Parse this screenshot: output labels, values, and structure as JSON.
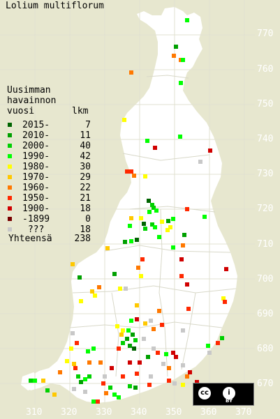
{
  "title": "Lolium multiflorum",
  "legend": {
    "heading": [
      "Uusimman",
      "havainnon",
      "vuosi"
    ],
    "count_heading": "lkm",
    "rows": [
      {
        "label": "2015-",
        "count": "7",
        "color": "#006400"
      },
      {
        "label": "2010-",
        "count": "11",
        "color": "#00a000"
      },
      {
        "label": "2000-",
        "count": "40",
        "color": "#00d000"
      },
      {
        "label": "1990-",
        "count": "42",
        "color": "#00ff00"
      },
      {
        "label": "1980-",
        "count": "30",
        "color": "#ffff00"
      },
      {
        "label": "1970-",
        "count": "29",
        "color": "#ffc800"
      },
      {
        "label": "1960-",
        "count": "22",
        "color": "#ff7800"
      },
      {
        "label": "1950-",
        "count": "21",
        "color": "#ff2800"
      },
      {
        "label": "1900-",
        "count": "18",
        "color": "#d00000"
      },
      {
        "label": "-1899",
        "count": "0",
        "color": "#780000"
      },
      {
        "label": " ???",
        "count": "18",
        "color": "#c8c8c8"
      }
    ],
    "total_label": "Yhteensä",
    "total_count": "238"
  },
  "y_axis_labels": [
    "770",
    "760",
    "750",
    "740",
    "730",
    "720",
    "710",
    "700",
    "690",
    "680",
    "670"
  ],
  "x_axis_labels": [
    "310",
    "320",
    "330",
    "340",
    "350",
    "360",
    "370"
  ],
  "license": {
    "cc": "cc",
    "by": "BY",
    "icon": "cc-by-license-icon"
  }
}
